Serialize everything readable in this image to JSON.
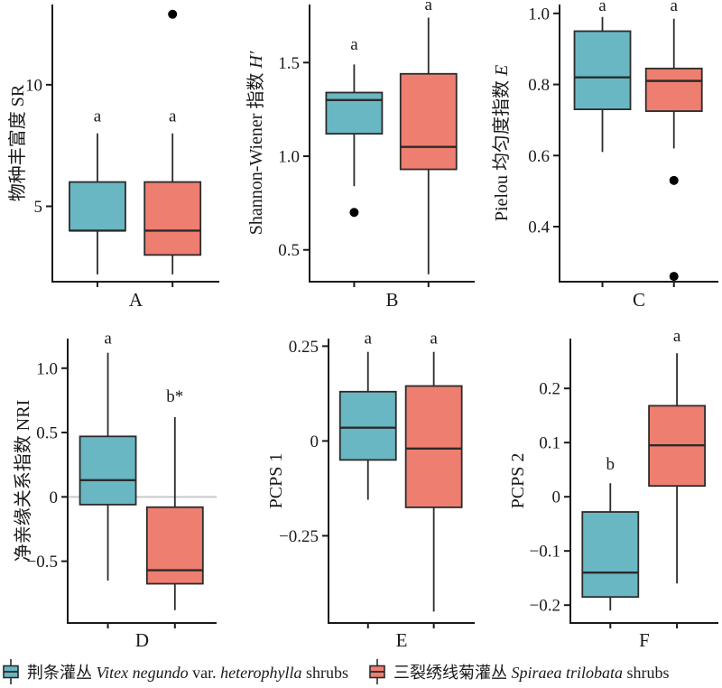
{
  "colors": {
    "vitex_fill": "#69B7C3",
    "spiraea_fill": "#EE7E70",
    "box_stroke": "#2B2B2B",
    "axis": "#1A1A1A",
    "outlier": "#000000",
    "refline": "#C9C9C9",
    "text": "#1A1A1A",
    "background": "#FFFFFF"
  },
  "legend": {
    "items": [
      {
        "series": "vitex",
        "cjk": "荆条灌丛 ",
        "latin_italic_1": "Vitex negundo",
        "mid": " var. ",
        "latin_italic_2": "heterophylla",
        "suffix": " shrubs"
      },
      {
        "series": "spiraea",
        "cjk": "三裂绣线菊灌丛 ",
        "latin_italic_1": "Spiraea trilobata",
        "mid": "",
        "latin_italic_2": "",
        "suffix": " shrubs"
      }
    ]
  },
  "chart_data": {
    "type": "box",
    "grid": false,
    "legend_position": "bottom",
    "series": [
      {
        "key": "vitex",
        "label": "荆条灌丛 Vitex negundo var. heterophylla shrubs",
        "color": "#69B7C3"
      },
      {
        "key": "spiraea",
        "label": "三裂绣线菊灌丛 Spiraea trilobata shrubs",
        "color": "#EE7E70"
      }
    ],
    "panels": [
      {
        "id": "A",
        "panel_label": "A",
        "ylabel_parts": [
          {
            "text": "物种丰富度 SR",
            "italic": false
          }
        ],
        "ylim": [
          1.9,
          13.3
        ],
        "yticks": [
          {
            "v": 5,
            "label": "5"
          },
          {
            "v": 10,
            "label": "10"
          }
        ],
        "refline": null,
        "boxes": [
          {
            "series": "vitex",
            "sig": "a",
            "sig_v": 8.5,
            "low": 2.2,
            "q1": 4,
            "median": 4,
            "q3": 6,
            "high": 8,
            "outliers": []
          },
          {
            "series": "spiraea",
            "sig": "a",
            "sig_v": 8.5,
            "low": 2.2,
            "q1": 3,
            "median": 4,
            "q3": 6,
            "high": 8,
            "outliers": [
              12.9
            ]
          }
        ]
      },
      {
        "id": "B",
        "panel_label": "B",
        "ylabel_parts": [
          {
            "text": "Shannon-Wiener 指数 ",
            "italic": false
          },
          {
            "text": "H′",
            "italic": true
          }
        ],
        "ylim": [
          0.33,
          1.81
        ],
        "yticks": [
          {
            "v": 0.5,
            "label": "0.5"
          },
          {
            "v": 1.0,
            "label": "1.0"
          },
          {
            "v": 1.5,
            "label": "1.5"
          }
        ],
        "refline": null,
        "boxes": [
          {
            "series": "vitex",
            "sig": "a",
            "sig_v": 1.57,
            "low": 0.84,
            "q1": 1.12,
            "median": 1.3,
            "q3": 1.34,
            "high": 1.49,
            "outliers": [
              0.7
            ]
          },
          {
            "series": "spiraea",
            "sig": "a",
            "sig_v": 1.78,
            "low": 0.37,
            "q1": 0.93,
            "median": 1.05,
            "q3": 1.44,
            "high": 1.74,
            "outliers": []
          }
        ]
      },
      {
        "id": "C",
        "panel_label": "C",
        "ylabel_parts": [
          {
            "text": "Pielou 均匀度指数 ",
            "italic": false
          },
          {
            "text": "E",
            "italic": true
          }
        ],
        "ylim": [
          0.245,
          1.025
        ],
        "yticks": [
          {
            "v": 0.4,
            "label": "0.4"
          },
          {
            "v": 0.6,
            "label": "0.6"
          },
          {
            "v": 0.8,
            "label": "0.8"
          },
          {
            "v": 1.0,
            "label": "1.0"
          }
        ],
        "refline": null,
        "boxes": [
          {
            "series": "vitex",
            "sig": "a",
            "sig_v": 1.007,
            "low": 0.61,
            "q1": 0.73,
            "median": 0.82,
            "q3": 0.95,
            "high": 0.99,
            "outliers": []
          },
          {
            "series": "spiraea",
            "sig": "a",
            "sig_v": 1.007,
            "low": 0.62,
            "q1": 0.725,
            "median": 0.81,
            "q3": 0.845,
            "high": 0.985,
            "outliers": [
              0.53,
              0.26
            ]
          }
        ]
      },
      {
        "id": "D",
        "panel_label": "D",
        "ylabel_parts": [
          {
            "text": "净亲缘关系指数 NRI",
            "italic": false
          }
        ],
        "ylim": [
          -0.98,
          1.23
        ],
        "yticks": [
          {
            "v": -0.5,
            "label": "−0.5"
          },
          {
            "v": 0,
            "label": "0"
          },
          {
            "v": 0.5,
            "label": "0.5"
          },
          {
            "v": 1.0,
            "label": "1.0"
          }
        ],
        "refline": 0,
        "boxes": [
          {
            "series": "vitex",
            "sig": "a",
            "sig_v": 1.19,
            "low": -0.65,
            "q1": -0.06,
            "median": 0.13,
            "q3": 0.47,
            "high": 1.12,
            "outliers": []
          },
          {
            "series": "spiraea",
            "sig": "b*",
            "sig_v": 0.74,
            "low": -0.88,
            "q1": -0.675,
            "median": -0.57,
            "q3": -0.08,
            "high": 0.62,
            "outliers": []
          }
        ]
      },
      {
        "id": "E",
        "panel_label": "E",
        "ylabel_parts": [
          {
            "text": "PCPS 1",
            "italic": false
          }
        ],
        "ylim": [
          -0.48,
          0.27
        ],
        "yticks": [
          {
            "v": -0.25,
            "label": "−0.25"
          },
          {
            "v": 0,
            "label": "0"
          },
          {
            "v": 0.25,
            "label": "0.25"
          }
        ],
        "refline": null,
        "boxes": [
          {
            "series": "vitex",
            "sig": "a",
            "sig_v": 0.257,
            "low": -0.155,
            "q1": -0.05,
            "median": 0.035,
            "q3": 0.13,
            "high": 0.235,
            "outliers": []
          },
          {
            "series": "spiraea",
            "sig": "a",
            "sig_v": 0.257,
            "low": -0.45,
            "q1": -0.175,
            "median": -0.02,
            "q3": 0.145,
            "high": 0.235,
            "outliers": []
          }
        ]
      },
      {
        "id": "F",
        "panel_label": "F",
        "ylabel_parts": [
          {
            "text": "PCPS 2",
            "italic": false
          }
        ],
        "ylim": [
          -0.233,
          0.292
        ],
        "yticks": [
          {
            "v": -0.2,
            "label": "−0.2"
          },
          {
            "v": -0.1,
            "label": "−0.1"
          },
          {
            "v": 0,
            "label": "0"
          },
          {
            "v": 0.1,
            "label": "0.1"
          },
          {
            "v": 0.2,
            "label": "0.2"
          }
        ],
        "refline": null,
        "boxes": [
          {
            "series": "vitex",
            "sig": "b",
            "sig_v": 0.05,
            "low": -0.21,
            "q1": -0.185,
            "median": -0.14,
            "q3": -0.028,
            "high": 0.025,
            "outliers": []
          },
          {
            "series": "spiraea",
            "sig": "a",
            "sig_v": 0.287,
            "low": -0.16,
            "q1": 0.02,
            "median": 0.095,
            "q3": 0.168,
            "high": 0.265,
            "outliers": []
          }
        ]
      }
    ]
  }
}
